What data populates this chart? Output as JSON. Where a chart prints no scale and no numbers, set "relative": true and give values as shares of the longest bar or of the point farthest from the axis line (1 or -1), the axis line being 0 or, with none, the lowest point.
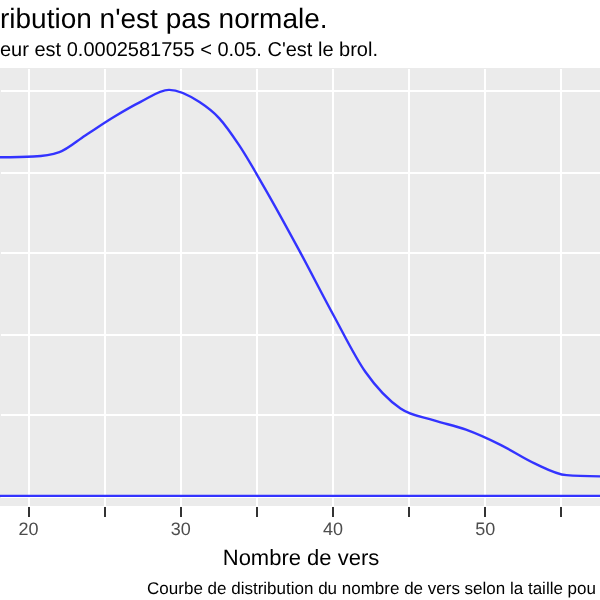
{
  "chart_data": {
    "type": "line",
    "title": "ribution n'est pas normale.",
    "subtitle": "eur est  0.0002581755  < 0.05. C'est le brol.",
    "xlabel": "Nombre de vers",
    "annotations": [
      "Courbe de distribution du nombre de vers selon la taille pou"
    ],
    "relative": true,
    "x": [
      18.2,
      20.4,
      22.1,
      23.8,
      25.7,
      27.4,
      29.3,
      31.3,
      32.6,
      33.9,
      35.6,
      37.9,
      40.1,
      42.2,
      44.5,
      46.7,
      48.8,
      51.1,
      53.3,
      55.4,
      57.6
    ],
    "series": [
      {
        "color": "#3333ff",
        "values": [
          0.834,
          0.836,
          0.847,
          0.888,
          0.934,
          0.97,
          1.0,
          0.97,
          0.93,
          0.864,
          0.757,
          0.601,
          0.445,
          0.305,
          0.215,
          0.186,
          0.163,
          0.125,
          0.08,
          0.051,
          0.048
        ]
      }
    ],
    "ref_lines": [
      {
        "axis": "y",
        "value": 0,
        "color": "#3333ff"
      }
    ],
    "xlim": [
      18.2,
      57.6
    ],
    "xticks": [
      20,
      {
        "value": 25,
        "label": null
      },
      30,
      {
        "value": 35,
        "label": null
      },
      40,
      {
        "value": 45,
        "label": null
      },
      50,
      {
        "value": 55,
        "label": null
      }
    ],
    "grid": true,
    "marker": "none",
    "line_style": "solid"
  }
}
